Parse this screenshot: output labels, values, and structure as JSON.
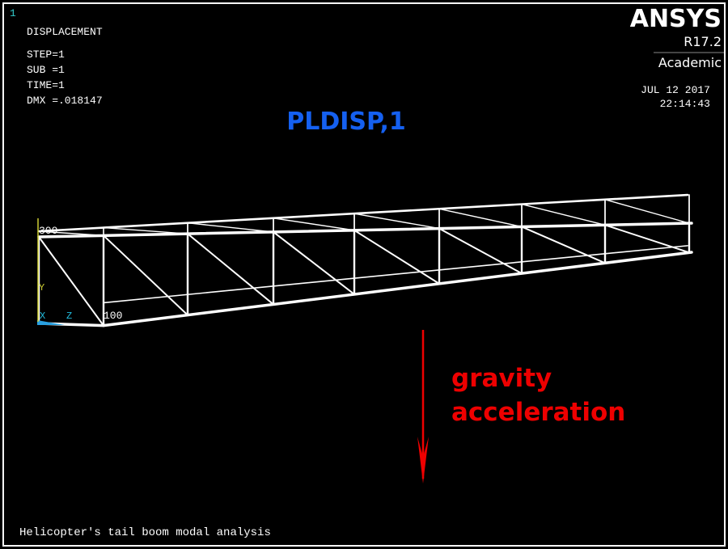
{
  "window_number": "1",
  "legend": {
    "title": "DISPLACEMENT",
    "lines": [
      "STEP=1",
      "SUB =1",
      "TIME=1",
      "DMX =.018147"
    ]
  },
  "logo": {
    "name": "ANSYS",
    "version": "R17.2",
    "edition": "Academic"
  },
  "timestamp": {
    "date": "JUL 12 2017",
    "time": "22:14:43"
  },
  "command": "PLDISP,1",
  "model_labels": {
    "node_top": "300",
    "node_bottom": "100",
    "axis_y": "Y",
    "axis_x": "X",
    "axis_z": "Z"
  },
  "annotation": {
    "line1": "gravity",
    "line2": "acceleration"
  },
  "footer": "Helicopter's tail boom modal analysis"
}
